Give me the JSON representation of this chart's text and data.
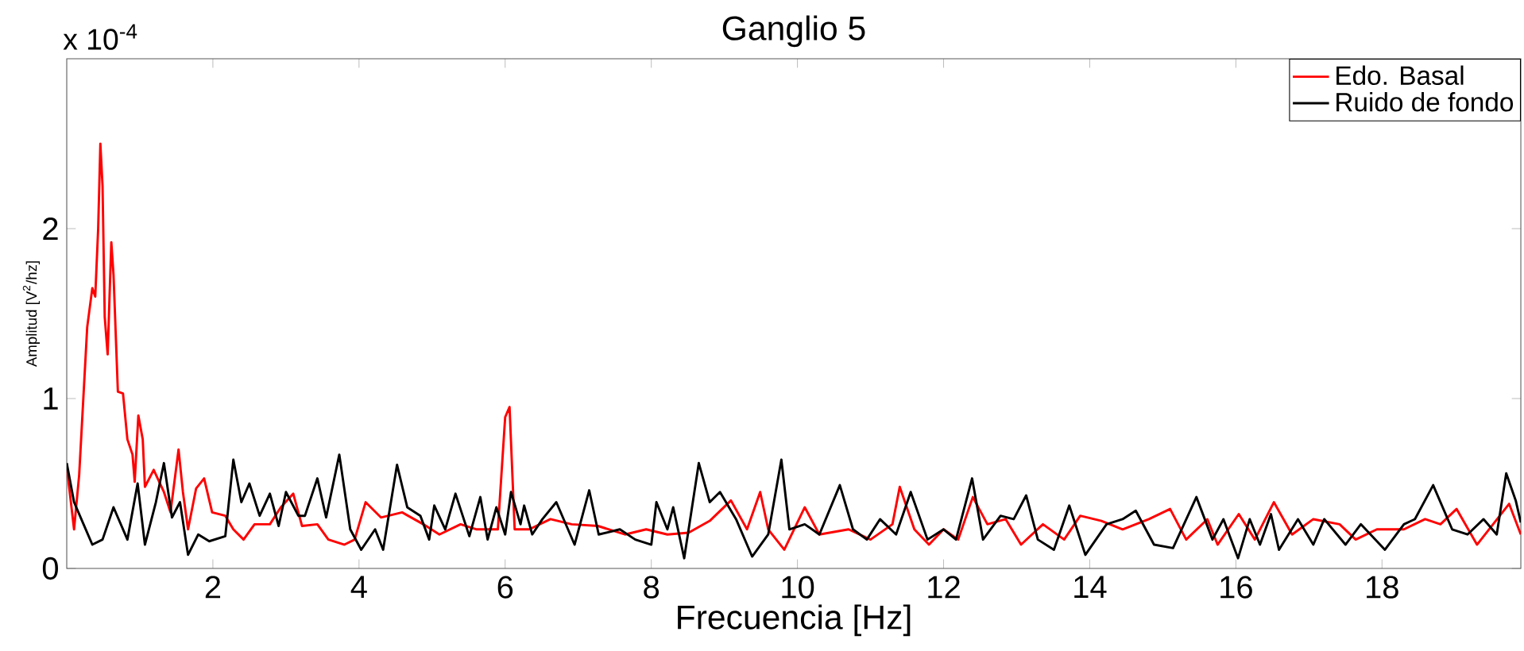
{
  "chart_data": {
    "type": "line",
    "title": "Ganglio 5",
    "xlabel": "Frecuencia [Hz]",
    "ylabel": "Amplitud [V$^{2}$/hz]",
    "annotations": [
      "x 10$^{-4}$"
    ],
    "xlim": [
      0,
      19.9
    ],
    "ylim": [
      0,
      3
    ],
    "xticks": [
      2,
      4,
      6,
      8,
      10,
      12,
      14,
      16,
      18
    ],
    "yticks": [
      0,
      1,
      2
    ],
    "legend": "top right",
    "grid": false,
    "line_style": "solid",
    "series": [
      {
        "name": "Edo. Basal",
        "color": "#ff0000",
        "x": [
          0.0,
          0.1,
          0.17,
          0.28,
          0.35,
          0.39,
          0.43,
          0.46,
          0.49,
          0.52,
          0.56,
          0.61,
          0.64,
          0.7,
          0.77,
          0.83,
          0.9,
          0.93,
          0.98,
          1.04,
          1.07,
          1.19,
          1.33,
          1.42,
          1.53,
          1.59,
          1.66,
          1.77,
          1.88,
          1.99,
          2.17,
          2.28,
          2.42,
          2.57,
          2.78,
          2.93,
          3.1,
          3.22,
          3.43,
          3.58,
          3.8,
          3.94,
          4.09,
          4.3,
          4.59,
          4.88,
          5.1,
          5.39,
          5.61,
          5.9,
          6.0,
          6.06,
          6.13,
          6.33,
          6.62,
          6.91,
          7.27,
          7.64,
          7.93,
          8.22,
          8.51,
          8.8,
          9.09,
          9.31,
          9.49,
          9.6,
          9.82,
          10.1,
          10.3,
          10.7,
          11.0,
          11.3,
          11.4,
          11.6,
          11.8,
          12.0,
          12.2,
          12.4,
          12.6,
          12.85,
          13.06,
          13.36,
          13.65,
          13.87,
          14.16,
          14.45,
          14.81,
          15.1,
          15.32,
          15.61,
          15.75,
          16.04,
          16.26,
          16.52,
          16.77,
          17.06,
          17.42,
          17.64,
          17.93,
          18.3,
          18.59,
          18.8,
          19.02,
          19.3,
          19.52,
          19.74,
          19.9
        ],
        "values": [
          0.6,
          0.23,
          0.55,
          1.42,
          1.65,
          1.6,
          2.0,
          2.5,
          2.25,
          1.48,
          1.26,
          1.92,
          1.73,
          1.04,
          1.03,
          0.76,
          0.67,
          0.51,
          0.9,
          0.76,
          0.48,
          0.58,
          0.45,
          0.33,
          0.7,
          0.45,
          0.23,
          0.47,
          0.53,
          0.33,
          0.31,
          0.23,
          0.17,
          0.26,
          0.26,
          0.36,
          0.44,
          0.25,
          0.26,
          0.17,
          0.14,
          0.17,
          0.39,
          0.3,
          0.33,
          0.26,
          0.2,
          0.26,
          0.23,
          0.23,
          0.89,
          0.95,
          0.23,
          0.23,
          0.29,
          0.26,
          0.25,
          0.2,
          0.23,
          0.2,
          0.21,
          0.28,
          0.4,
          0.23,
          0.45,
          0.23,
          0.11,
          0.36,
          0.2,
          0.23,
          0.17,
          0.26,
          0.48,
          0.23,
          0.14,
          0.23,
          0.17,
          0.42,
          0.26,
          0.29,
          0.14,
          0.26,
          0.17,
          0.31,
          0.28,
          0.23,
          0.29,
          0.35,
          0.17,
          0.29,
          0.14,
          0.32,
          0.17,
          0.39,
          0.2,
          0.29,
          0.26,
          0.17,
          0.23,
          0.23,
          0.29,
          0.26,
          0.35,
          0.14,
          0.26,
          0.38,
          0.2
        ]
      },
      {
        "name": "Ruido de fondo",
        "color": "#000000",
        "x": [
          0.0,
          0.1,
          0.23,
          0.35,
          0.49,
          0.64,
          0.83,
          0.97,
          1.07,
          1.22,
          1.33,
          1.44,
          1.55,
          1.66,
          1.8,
          1.95,
          2.17,
          2.28,
          2.39,
          2.5,
          2.64,
          2.78,
          2.9,
          3.0,
          3.17,
          3.26,
          3.43,
          3.55,
          3.73,
          3.88,
          4.03,
          4.22,
          4.33,
          4.52,
          4.66,
          4.84,
          4.96,
          5.03,
          5.18,
          5.32,
          5.51,
          5.66,
          5.76,
          5.88,
          6.0,
          6.08,
          6.21,
          6.26,
          6.37,
          6.51,
          6.7,
          6.95,
          7.15,
          7.28,
          7.57,
          7.78,
          8.0,
          8.07,
          8.22,
          8.3,
          8.45,
          8.65,
          8.8,
          8.94,
          9.16,
          9.38,
          9.6,
          9.78,
          9.89,
          10.1,
          10.3,
          10.58,
          10.76,
          10.95,
          11.13,
          11.35,
          11.55,
          11.78,
          12.0,
          12.17,
          12.39,
          12.54,
          12.78,
          12.96,
          13.13,
          13.29,
          13.51,
          13.72,
          13.94,
          14.23,
          14.45,
          14.63,
          14.88,
          15.14,
          15.46,
          15.68,
          15.83,
          16.03,
          16.19,
          16.33,
          16.48,
          16.59,
          16.85,
          17.06,
          17.21,
          17.5,
          17.71,
          18.04,
          18.3,
          18.45,
          18.7,
          18.96,
          19.17,
          19.39,
          19.57,
          19.7,
          19.83,
          19.9
        ],
        "values": [
          0.62,
          0.39,
          0.26,
          0.14,
          0.17,
          0.36,
          0.17,
          0.5,
          0.14,
          0.39,
          0.62,
          0.3,
          0.39,
          0.08,
          0.2,
          0.16,
          0.19,
          0.64,
          0.39,
          0.5,
          0.31,
          0.44,
          0.25,
          0.45,
          0.31,
          0.31,
          0.53,
          0.3,
          0.67,
          0.23,
          0.11,
          0.23,
          0.11,
          0.61,
          0.36,
          0.31,
          0.17,
          0.37,
          0.23,
          0.44,
          0.19,
          0.42,
          0.17,
          0.36,
          0.2,
          0.45,
          0.26,
          0.37,
          0.2,
          0.29,
          0.39,
          0.14,
          0.46,
          0.2,
          0.23,
          0.17,
          0.14,
          0.39,
          0.23,
          0.36,
          0.06,
          0.62,
          0.39,
          0.45,
          0.29,
          0.07,
          0.2,
          0.64,
          0.23,
          0.26,
          0.2,
          0.49,
          0.23,
          0.17,
          0.29,
          0.2,
          0.45,
          0.17,
          0.23,
          0.17,
          0.53,
          0.17,
          0.31,
          0.29,
          0.43,
          0.17,
          0.11,
          0.37,
          0.08,
          0.26,
          0.29,
          0.34,
          0.14,
          0.12,
          0.42,
          0.17,
          0.29,
          0.06,
          0.29,
          0.14,
          0.32,
          0.11,
          0.29,
          0.14,
          0.29,
          0.14,
          0.26,
          0.11,
          0.26,
          0.29,
          0.49,
          0.23,
          0.2,
          0.29,
          0.2,
          0.56,
          0.4,
          0.27
        ]
      }
    ]
  }
}
